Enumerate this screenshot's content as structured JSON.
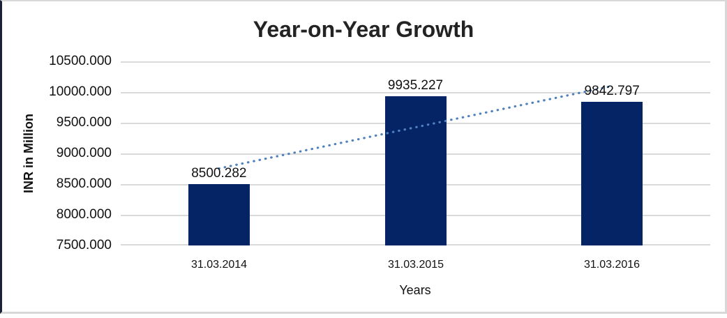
{
  "chart_data": {
    "type": "bar",
    "title": "Year-on-Year Growth",
    "xlabel": "Years",
    "ylabel": "INR in Million",
    "categories": [
      "31.03.2014",
      "31.03.2015",
      "31.03.2016"
    ],
    "values": [
      8500.282,
      9935.227,
      9842.797
    ],
    "data_labels": [
      "8500.282",
      "9935.227",
      "9842.797"
    ],
    "ylim": [
      7500,
      10500
    ],
    "ytick_step": 500,
    "ytick_labels": [
      "10500.000",
      "10000.000",
      "9500.000",
      "9000.000",
      "8500.000",
      "8000.000",
      "7500.000"
    ],
    "grid": "horizontal",
    "legend": "none",
    "bar_color": "#042466",
    "gridline_color": "#d9d9d9",
    "trendline": {
      "type": "linear",
      "style": "dotted",
      "color": "#4f81bd"
    }
  }
}
